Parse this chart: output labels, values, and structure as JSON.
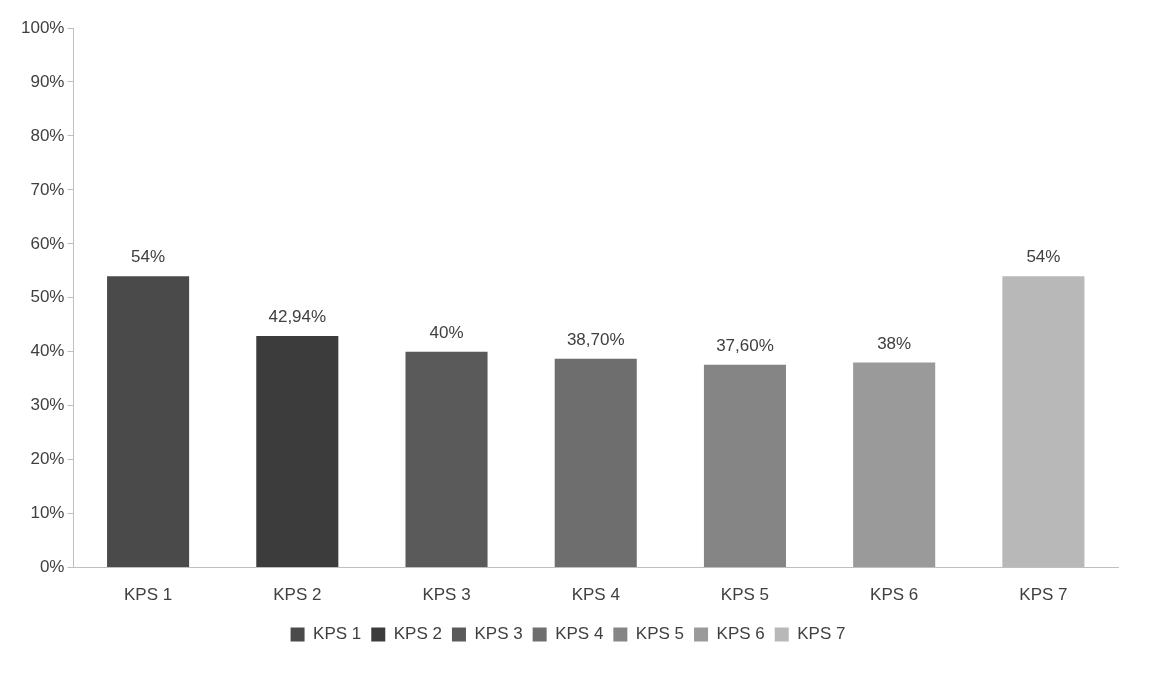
{
  "chart_data": {
    "type": "bar",
    "categories": [
      "KPS 1",
      "KPS 2",
      "KPS 3",
      "KPS 4",
      "KPS 5",
      "KPS 6",
      "KPS 7"
    ],
    "series": [
      {
        "name": "KPS 1",
        "color": "#4a4a4a",
        "values": [
          54,
          null,
          null,
          null,
          null,
          null,
          null
        ],
        "value_labels": [
          "54%",
          null,
          null,
          null,
          null,
          null,
          null
        ]
      },
      {
        "name": "KPS 2",
        "color": "#3c3c3c",
        "values": [
          null,
          42.94,
          null,
          null,
          null,
          null,
          null
        ],
        "value_labels": [
          null,
          "42,94%",
          null,
          null,
          null,
          null,
          null
        ]
      },
      {
        "name": "KPS 3",
        "color": "#5a5a5a",
        "values": [
          null,
          null,
          40,
          null,
          null,
          null,
          null
        ],
        "value_labels": [
          null,
          null,
          "40%",
          null,
          null,
          null,
          null
        ]
      },
      {
        "name": "KPS 4",
        "color": "#6e6e6e",
        "values": [
          null,
          null,
          null,
          38.7,
          null,
          null,
          null
        ],
        "value_labels": [
          null,
          null,
          null,
          "38,70%",
          null,
          null,
          null
        ]
      },
      {
        "name": "KPS 5",
        "color": "#858585",
        "values": [
          null,
          null,
          null,
          null,
          37.6,
          null,
          null
        ],
        "value_labels": [
          null,
          null,
          null,
          null,
          "37,60%",
          null,
          null
        ]
      },
      {
        "name": "KPS 6",
        "color": "#9a9a9a",
        "values": [
          null,
          null,
          null,
          null,
          null,
          38,
          null
        ],
        "value_labels": [
          null,
          null,
          null,
          null,
          null,
          "38%",
          null
        ]
      },
      {
        "name": "KPS 7",
        "color": "#b8b8b8",
        "values": [
          null,
          null,
          null,
          null,
          null,
          null,
          54
        ],
        "value_labels": [
          null,
          null,
          null,
          null,
          null,
          null,
          "54%"
        ]
      }
    ],
    "ylim": [
      0,
      100
    ],
    "yticks": [
      {
        "value": 0,
        "label": "0%"
      },
      {
        "value": 10,
        "label": "10%"
      },
      {
        "value": 20,
        "label": "20%"
      },
      {
        "value": 30,
        "label": "30%"
      },
      {
        "value": 40,
        "label": "40%"
      },
      {
        "value": 50,
        "label": "50%"
      },
      {
        "value": 60,
        "label": "60%"
      },
      {
        "value": 70,
        "label": "70%"
      },
      {
        "value": 80,
        "label": "80%"
      },
      {
        "value": 90,
        "label": "90%"
      },
      {
        "value": 100,
        "label": "100%"
      }
    ],
    "grid": false,
    "legend": "bottom"
  }
}
